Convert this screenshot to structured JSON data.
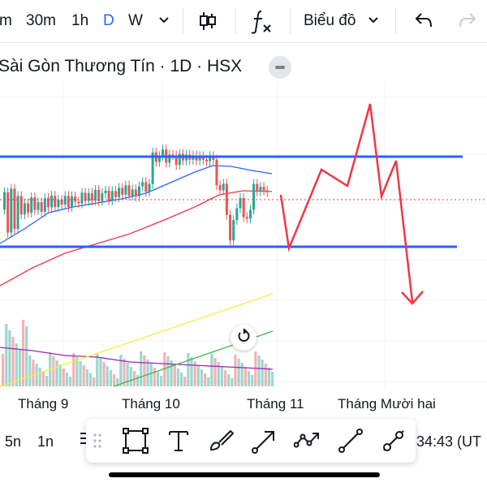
{
  "toolbar": {
    "intervals": [
      "m",
      "30m",
      "1h",
      "D",
      "W"
    ],
    "active_interval": "D",
    "chart_type_label": "Biểu đồ",
    "active_color": "#2962ff"
  },
  "chart": {
    "title": "Sài Gòn Thương Tín · 1D · HSX",
    "x_labels": [
      "Tháng 9",
      "Tháng 10",
      "Tháng 11",
      "Tháng Mười hai"
    ],
    "colors": {
      "up": "#26a69a",
      "down": "#ef5350",
      "channel": "#2962ff",
      "annotation": "#f23645",
      "ma_fast": "#2962ff",
      "ma_slow": "#f23645",
      "volume_ma": "#9c27b0",
      "trend_green": "#4caf50",
      "trend_yellow": "#ffeb3b"
    }
  },
  "bottom": {
    "range_5d": "5n",
    "range_1d": "1n",
    "clock": "34:43 (UT"
  },
  "drawing_tools": [
    "rectangle-tool",
    "text-tool",
    "brush-tool",
    "arrow-tool",
    "path-tool",
    "line-tool",
    "ray-tool"
  ]
}
